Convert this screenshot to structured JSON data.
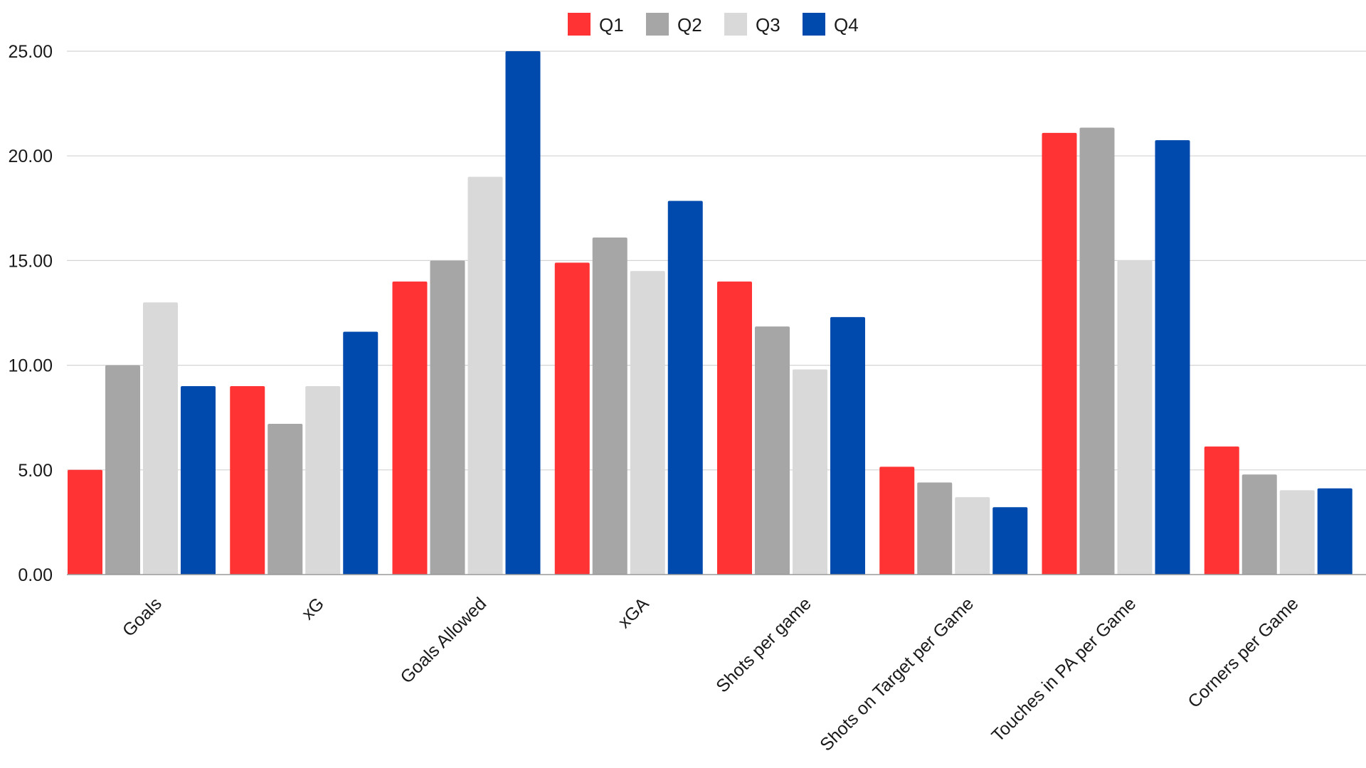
{
  "chart_data": {
    "type": "bar",
    "title": "",
    "xlabel": "",
    "ylabel": "",
    "ylim": [
      0,
      25
    ],
    "grid": true,
    "legend_position": "top-center",
    "yticks": [
      "0.00",
      "5.00",
      "10.00",
      "15.00",
      "20.00",
      "25.00"
    ],
    "ytick_values": [
      0,
      5,
      10,
      15,
      20,
      25
    ],
    "categories": [
      "Goals",
      "xG",
      "Goals Allowed",
      "xGA",
      "Shots per game",
      "Shots on Target per Game",
      "Touches in PA per Game",
      "Corners per Game"
    ],
    "series": [
      {
        "name": "Q1",
        "color": "#ff3333",
        "values": [
          5.0,
          9.0,
          14.0,
          14.9,
          14.0,
          5.15,
          21.1,
          6.12
        ]
      },
      {
        "name": "Q2",
        "color": "#a6a6a6",
        "values": [
          10.0,
          7.2,
          15.0,
          16.1,
          11.85,
          4.4,
          21.35,
          4.78
        ]
      },
      {
        "name": "Q3",
        "color": "#d9d9d9",
        "values": [
          13.0,
          9.0,
          19.0,
          14.5,
          9.8,
          3.7,
          15.0,
          4.03
        ]
      },
      {
        "name": "Q4",
        "color": "#004aad",
        "values": [
          9.0,
          11.6,
          25.0,
          17.85,
          12.3,
          3.22,
          20.75,
          4.12
        ]
      }
    ]
  }
}
